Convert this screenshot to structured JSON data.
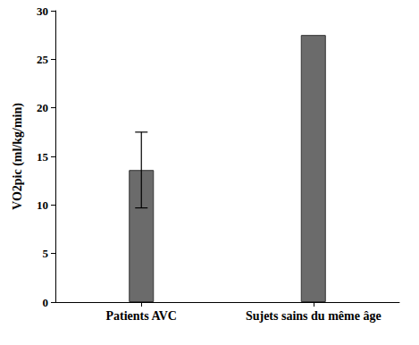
{
  "chart_data": {
    "type": "bar",
    "y_label": "VO2pic (ml/kg/min)",
    "categories": [
      "Patients AVC",
      "Sujets sains du même âge"
    ],
    "values": [
      13.6,
      27.5
    ],
    "errors": [
      3.9,
      null
    ],
    "color": "#6b6b6b",
    "ylim": [
      0,
      30
    ],
    "yticks": [
      0,
      5,
      10,
      15,
      20,
      25,
      30
    ],
    "grid": false
  }
}
